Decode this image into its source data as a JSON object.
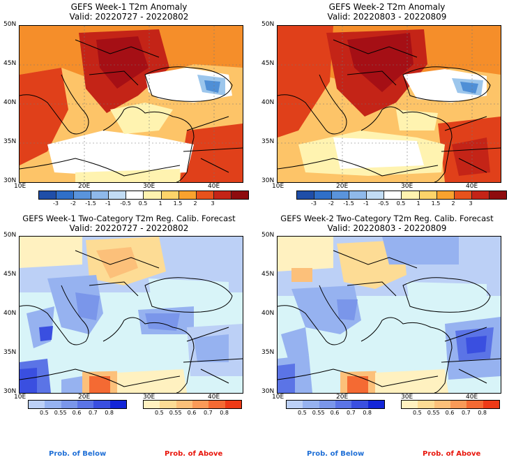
{
  "colors": {
    "hot_dark": "#a50f15",
    "hot_mid": "#e0401a",
    "hot_orange": "#f58e2a",
    "hot_light": "#fdc468",
    "warm_pale": "#fff3b0",
    "neutral": "#ffffff",
    "cold_pale": "#cfe6f7",
    "cold_light": "#9cc6ec",
    "cold_mid": "#4f8fd6",
    "cold_dark": "#1f4ea8",
    "prob_base": "#d8f4f8",
    "prob_blue_text": "#1f6fd6",
    "prob_red_text": "#e8150b"
  },
  "anomaly_panels": [
    {
      "id": "week1",
      "title": "GEFS Week-1 T2m Anomaly",
      "valid": "Valid: 20220727 - 20220802"
    },
    {
      "id": "week2",
      "title": "GEFS Week-2 T2m Anomaly",
      "valid": "Valid: 20220803 - 20220809"
    }
  ],
  "prob_panels": [
    {
      "id": "week1",
      "title": "GEFS Week-1 Two-Category T2m Reg. Calib. Forecast",
      "valid": "Valid: 20220727 - 20220802"
    },
    {
      "id": "week2",
      "title": "GEFS Week-2 Two-Category T2m Reg. Calib. Forecast",
      "valid": "Valid: 20220803 - 20220809"
    }
  ],
  "lat_labels": [
    "50N",
    "45N",
    "40N",
    "35N",
    "30N"
  ],
  "lon_labels": [
    "10E",
    "20E",
    "30E",
    "40E"
  ],
  "anomaly_colorbar": {
    "ticks": [
      "-3",
      "-2",
      "-1.5",
      "-1",
      "-0.5",
      "0.5",
      "1",
      "1.5",
      "2",
      "3"
    ],
    "colors": [
      "#1f4ea8",
      "#2f6fc8",
      "#5a94dc",
      "#8fb9ea",
      "#c2dcf4",
      "#ffffff",
      "#fff3b0",
      "#fdd46a",
      "#f9a22e",
      "#e8521c",
      "#c42417",
      "#8e0c0e"
    ]
  },
  "below_colorbar": {
    "ticks": [
      "0.5",
      "0.55",
      "0.6",
      "0.7",
      "0.8"
    ],
    "colors": [
      "#bcd0f6",
      "#96b2f0",
      "#7a96ea",
      "#5b74e6",
      "#3a4fe0",
      "#1326d8"
    ]
  },
  "above_colorbar": {
    "ticks": [
      "0.5",
      "0.55",
      "0.6",
      "0.7",
      "0.8"
    ],
    "colors": [
      "#fff1c0",
      "#fddc95",
      "#fcc07a",
      "#f99a58",
      "#f46a33",
      "#ee3a16"
    ]
  },
  "footer": {
    "below_left": "Prob. of Below",
    "above_left": "Prob. of Above",
    "below_right": "Prob. of Below",
    "above_right": "Prob. of Above"
  }
}
